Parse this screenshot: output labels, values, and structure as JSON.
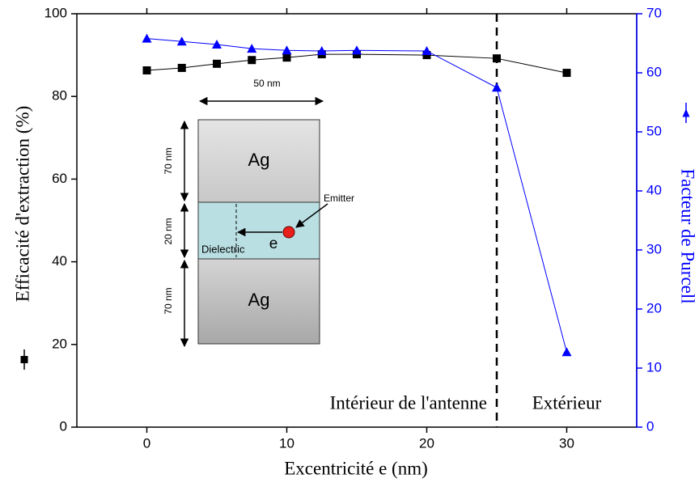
{
  "chart_data": {
    "type": "line",
    "xlabel": "Excentricité e (nm)",
    "xlim": [
      -5,
      35
    ],
    "xticks": [
      0,
      10,
      20,
      30
    ],
    "ylim": [
      0,
      100
    ],
    "yticks": [
      0,
      20,
      40,
      60,
      80,
      100
    ],
    "y2lim": [
      0,
      70
    ],
    "y2ticks": [
      0,
      10,
      20,
      30,
      40,
      50,
      60,
      70
    ],
    "series": [
      {
        "name": "Efficacité d'extraction (%)",
        "color": "#000000",
        "marker": "square",
        "x": [
          0,
          2.5,
          5,
          7.5,
          10,
          12.5,
          15,
          20,
          25,
          30
        ],
        "values": [
          86.3,
          86.9,
          87.9,
          88.8,
          89.4,
          90.2,
          90.2,
          90.0,
          89.2,
          85.7
        ]
      },
      {
        "name": "Facteur de Purcell",
        "color": "#0000ff",
        "marker": "triangle",
        "axis": "y2",
        "x": [
          0,
          2.5,
          5,
          7.5,
          10,
          12.5,
          15,
          20,
          25,
          30
        ],
        "values": [
          65.8,
          65.3,
          64.8,
          64.1,
          63.8,
          63.7,
          63.8,
          63.7,
          57.5,
          12.7
        ]
      }
    ],
    "vline": 25,
    "annotations": [
      "Intérieur de l'antenne",
      "Extérieur"
    ],
    "inset": {
      "width": "50 nm",
      "top_height": "70 nm",
      "middle_height": "20 nm",
      "bottom_height": "70 nm",
      "top_material": "Ag",
      "bottom_material": "Ag",
      "middle_material": "Dielectric",
      "emitter": "Emitter",
      "offset": "e"
    }
  }
}
